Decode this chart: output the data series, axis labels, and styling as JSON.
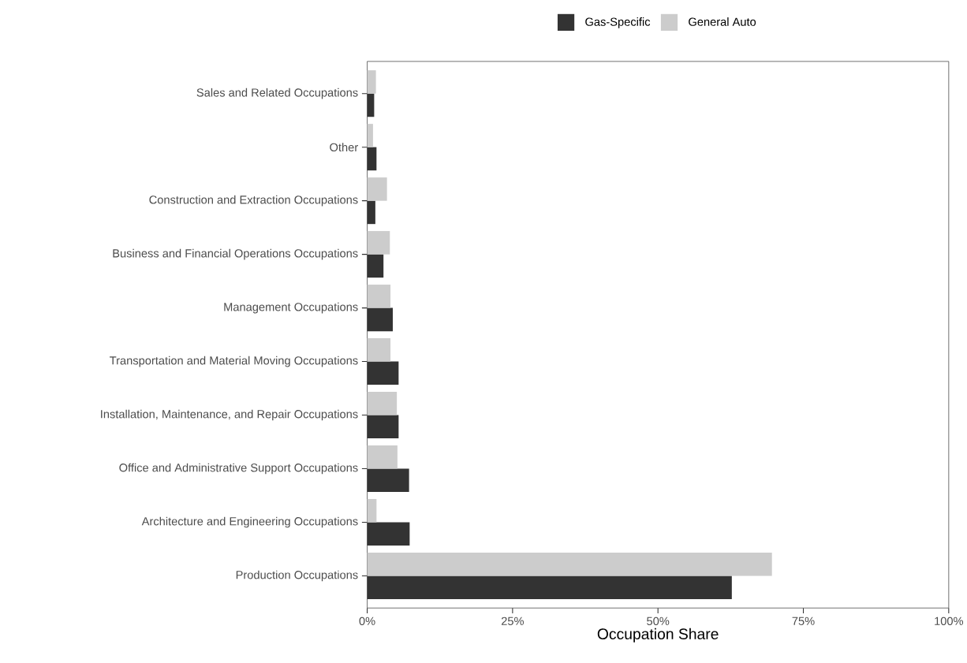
{
  "chart_data": {
    "type": "bar",
    "orientation": "horizontal",
    "xlabel": "Occupation Share",
    "categories": [
      "Sales and Related Occupations",
      "Other",
      "Construction and Extraction Occupations",
      "Business and Financial Operations Occupations",
      "Management Occupations",
      "Transportation and Material Moving Occupations",
      "Installation, Maintenance, and Repair Occupations",
      "Office and Administrative Support Occupations",
      "Architecture and Engineering Occupations",
      "Production Occupations"
    ],
    "series": [
      {
        "name": "Gas-Specific",
        "color": "#333333",
        "values": [
          1.2,
          1.6,
          1.4,
          2.8,
          4.4,
          5.4,
          5.4,
          7.2,
          7.3,
          62.7
        ]
      },
      {
        "name": "General Auto",
        "color": "#cccccc",
        "values": [
          1.5,
          1.0,
          3.4,
          3.9,
          4.0,
          4.0,
          5.1,
          5.2,
          1.6,
          69.6
        ]
      }
    ],
    "xlim": [
      0,
      100
    ],
    "xticks": [
      {
        "value": 0,
        "label": "0%"
      },
      {
        "value": 25,
        "label": "25%"
      },
      {
        "value": 50,
        "label": "50%"
      },
      {
        "value": 75,
        "label": "75%"
      },
      {
        "value": 100,
        "label": "100%"
      }
    ],
    "legend": "top"
  }
}
